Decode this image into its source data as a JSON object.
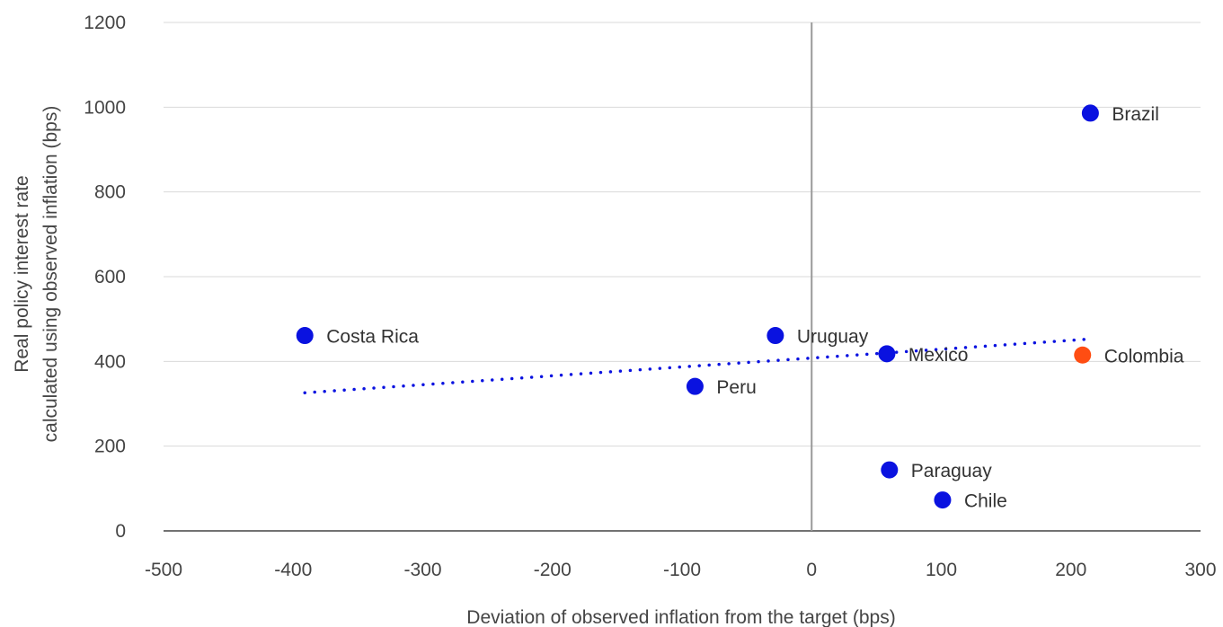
{
  "chart_data": {
    "type": "scatter",
    "title": "",
    "xlabel": "Deviation of observed inflation from the target (bps)",
    "ylabel_lines": [
      "Real policy interest rate",
      "calculated using observed inflation (bps)"
    ],
    "xlim": [
      -500,
      300
    ],
    "ylim": [
      0,
      1200
    ],
    "x_ticks": [
      "-500",
      "-400",
      "-300",
      "-200",
      "-100",
      "0",
      "100",
      "200",
      "300"
    ],
    "y_ticks": [
      "0",
      "200",
      "400",
      "600",
      "800",
      "1000",
      "1200"
    ],
    "grid": "horizontal",
    "points": [
      {
        "label": "Costa Rica",
        "x": -391,
        "y": 461,
        "color": "#0a12e0"
      },
      {
        "label": "Uruguay",
        "x": -28,
        "y": 461,
        "color": "#0a12e0"
      },
      {
        "label": "Peru",
        "x": -90,
        "y": 341,
        "color": "#0a12e0"
      },
      {
        "label": "Mexico",
        "x": 58,
        "y": 418,
        "color": "#0a12e0"
      },
      {
        "label": "Colombia",
        "x": 209,
        "y": 415,
        "color": "#ff4d12"
      },
      {
        "label": "Brazil",
        "x": 215,
        "y": 986,
        "color": "#0a12e0"
      },
      {
        "label": "Paraguay",
        "x": 60,
        "y": 144,
        "color": "#0a12e0"
      },
      {
        "label": "Chile",
        "x": 101,
        "y": 73,
        "color": "#0a12e0"
      }
    ],
    "trendline": {
      "type": "linear",
      "x": [
        -391,
        215
      ],
      "y": [
        326,
        453
      ],
      "color": "#0a12e0",
      "style": "dotted"
    }
  }
}
